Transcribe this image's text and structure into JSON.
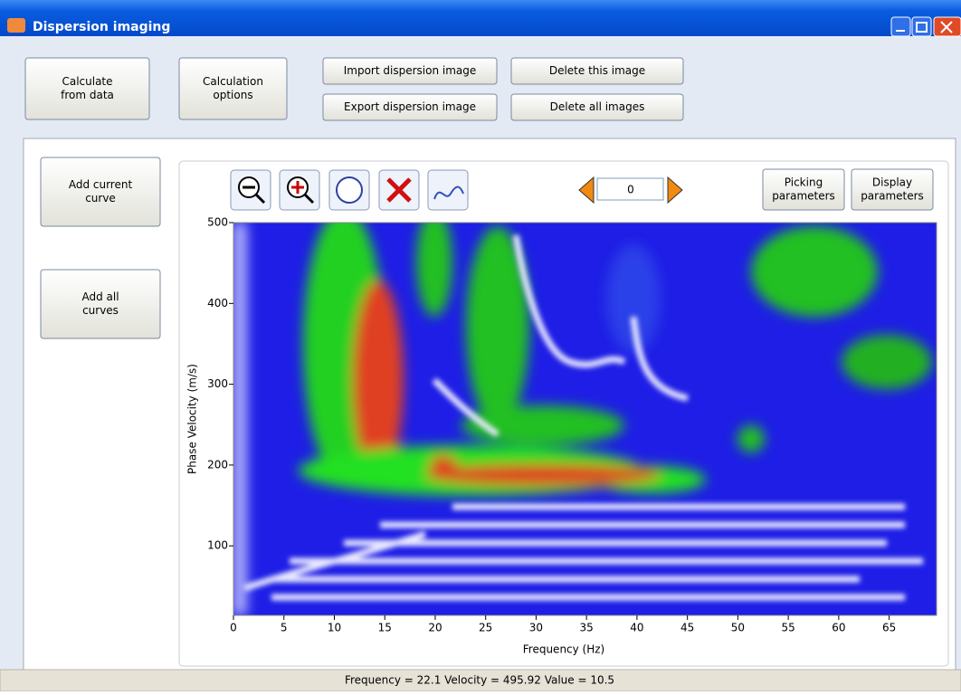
{
  "window": {
    "title": "Dispersion imaging"
  },
  "toolbar": {
    "buttons": [
      {
        "lines": [
          "Calculate",
          "from data"
        ]
      },
      {
        "lines": [
          "Calculation",
          "options"
        ]
      },
      {
        "lines": [
          "Import dispersion image"
        ]
      },
      {
        "lines": [
          "Export dispersion image"
        ]
      },
      {
        "lines": [
          "Delete this image"
        ]
      },
      {
        "lines": [
          "Delete all images"
        ]
      }
    ]
  },
  "side_buttons": [
    {
      "lines": [
        "Add current",
        "curve"
      ]
    },
    {
      "lines": [
        "Add all",
        "curves"
      ]
    }
  ],
  "viewer": {
    "index": "0",
    "buttons": [
      {
        "lines": [
          "Picking",
          "parameters"
        ]
      },
      {
        "lines": [
          "Display",
          "parameters"
        ]
      }
    ]
  },
  "status": "Frequency = 22.1 Velocity = 495.92 Value = 10.5",
  "chart_data": {
    "type": "heatmap",
    "x_label": "Frequency (Hz)",
    "y_label": "Phase Velocity (m/s)",
    "xlim": [
      0,
      69.7
    ],
    "ylim": [
      14,
      500
    ],
    "xticks": [
      0,
      5,
      10,
      15,
      20,
      25,
      30,
      35,
      40,
      45,
      50,
      55,
      60,
      65
    ],
    "yticks": [
      100,
      200,
      300,
      400,
      500
    ]
  }
}
